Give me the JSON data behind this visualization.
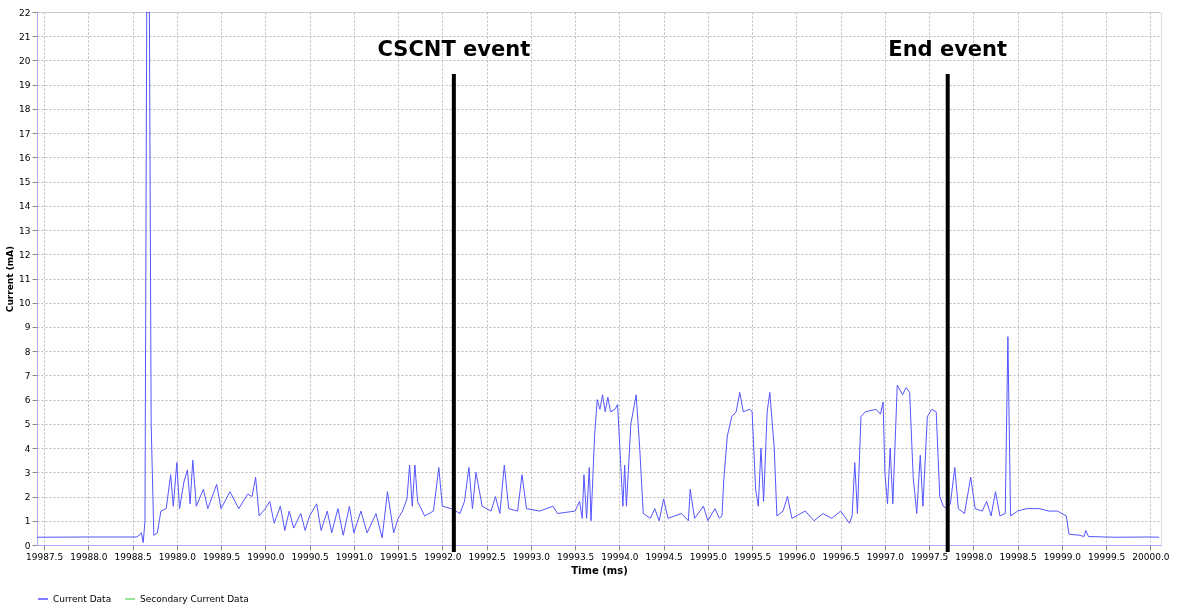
{
  "chart_data": {
    "type": "line",
    "xlabel": "Time (ms)",
    "ylabel": "Current (mA)",
    "xlim": [
      19987.42,
      20000.12
    ],
    "ylim": [
      0,
      22
    ],
    "xticks": [
      19987.5,
      {
        "value": 19988,
        "label": "19988.0"
      },
      19988.5,
      {
        "value": 19989,
        "label": "19989.0"
      },
      19989.5,
      {
        "value": 19990,
        "label": "19990.0"
      },
      19990.5,
      {
        "value": 19991,
        "label": "19991.0"
      },
      19991.5,
      {
        "value": 19992,
        "label": "19992.0"
      },
      19992.5,
      {
        "value": 19993,
        "label": "19993.0"
      },
      19993.5,
      {
        "value": 19994,
        "label": "19994.0"
      },
      19994.5,
      {
        "value": 19995,
        "label": "19995.0"
      },
      19995.5,
      {
        "value": 19996,
        "label": "19996.0"
      },
      19996.5,
      {
        "value": 19997,
        "label": "19997.0"
      },
      19997.5,
      {
        "value": 19998,
        "label": "19998.0"
      },
      19998.5,
      {
        "value": 19999,
        "label": "19999.0"
      },
      19999.5,
      {
        "value": 20000,
        "label": "20000.0"
      }
    ],
    "yticks": [
      0,
      1,
      2,
      3,
      4,
      5,
      6,
      7,
      8,
      9,
      10,
      11,
      12,
      13,
      14,
      15,
      16,
      17,
      18,
      19,
      20,
      21,
      22
    ],
    "grid": true,
    "legend": "bottom",
    "ref_lines": [
      {
        "axis": "x",
        "value": 19992.13,
        "label": "CSCNT event",
        "color": "#000000"
      },
      {
        "axis": "x",
        "value": 19997.71,
        "label": "End event",
        "color": "#000000"
      }
    ],
    "series": [
      {
        "name": "Current Data",
        "color": "#5555ff",
        "x": [
          19987.42,
          19988.0,
          19988.55,
          19988.6,
          19988.62,
          19988.64,
          19988.66,
          19988.69,
          19988.71,
          19988.74,
          19988.78,
          19988.82,
          19988.88,
          19988.93,
          19988.96,
          19989.0,
          19989.03,
          19989.08,
          19989.12,
          19989.15,
          19989.18,
          19989.22,
          19989.3,
          19989.35,
          19989.45,
          19989.5,
          19989.6,
          19989.7,
          19989.8,
          19989.85,
          19989.89,
          19989.93,
          19990.0,
          19990.05,
          19990.1,
          19990.17,
          19990.22,
          19990.27,
          19990.32,
          19990.4,
          19990.45,
          19990.5,
          19990.58,
          19990.63,
          19990.7,
          19990.75,
          19990.82,
          19990.88,
          19990.95,
          19991.0,
          19991.08,
          19991.15,
          19991.25,
          19991.32,
          19991.38,
          19991.45,
          19991.5,
          19991.55,
          19991.6,
          19991.63,
          19991.66,
          19991.69,
          19991.72,
          19991.8,
          19991.9,
          19991.96,
          19992.0,
          19992.1,
          19992.2,
          19992.25,
          19992.3,
          19992.34,
          19992.38,
          19992.45,
          19992.55,
          19992.6,
          19992.65,
          19992.7,
          19992.75,
          19992.85,
          19992.9,
          19992.95,
          19993.1,
          19993.25,
          19993.3,
          19993.5,
          19993.55,
          19993.58,
          19993.6,
          19993.63,
          19993.66,
          19993.68,
          19993.72,
          19993.75,
          19993.78,
          19993.81,
          19993.84,
          19993.87,
          19993.9,
          19993.95,
          19993.98,
          19994.02,
          19994.04,
          19994.06,
          19994.08,
          19994.13,
          19994.19,
          19994.23,
          19994.27,
          19994.35,
          19994.4,
          19994.45,
          19994.5,
          19994.55,
          19994.7,
          19994.78,
          19994.8,
          19994.85,
          19994.95,
          19995.0,
          19995.08,
          19995.13,
          19995.16,
          19995.18,
          19995.22,
          19995.27,
          19995.32,
          19995.36,
          19995.4,
          19995.47,
          19995.5,
          19995.54,
          19995.57,
          19995.6,
          19995.63,
          19995.67,
          19995.7,
          19995.75,
          19995.78,
          19995.85,
          19995.9,
          19995.95,
          19996.1,
          19996.2,
          19996.3,
          19996.4,
          19996.5,
          19996.6,
          19996.63,
          19996.66,
          19996.69,
          19996.73,
          19996.78,
          19996.9,
          19996.95,
          19996.98,
          19997.0,
          19997.03,
          19997.06,
          19997.09,
          19997.14,
          19997.2,
          19997.24,
          19997.28,
          19997.32,
          19997.36,
          19997.4,
          19997.43,
          19997.48,
          19997.53,
          19997.58,
          19997.62,
          19997.66,
          19997.7,
          19997.74,
          19997.79,
          19997.83,
          19997.9,
          19997.97,
          19998.02,
          19998.1,
          19998.15,
          19998.2,
          19998.25,
          19998.3,
          19998.36,
          19998.39,
          19998.42,
          19998.5,
          19998.6,
          19998.75,
          19998.85,
          19998.95,
          19999.0,
          19999.05,
          19999.08,
          19999.2,
          19999.25,
          19999.27,
          19999.3,
          19999.6,
          20000.0,
          20000.1
        ],
        "values": [
          0.32,
          0.33,
          0.33,
          0.5,
          0.1,
          1.0,
          22,
          22,
          5,
          0.4,
          0.5,
          1.4,
          1.5,
          2.9,
          1.6,
          3.4,
          1.5,
          2.6,
          3.1,
          1.7,
          3.5,
          1.6,
          2.3,
          1.5,
          2.5,
          1.5,
          2.2,
          1.5,
          2.1,
          2.0,
          2.8,
          1.2,
          1.5,
          1.8,
          0.9,
          1.6,
          0.6,
          1.4,
          0.7,
          1.3,
          0.6,
          1.2,
          1.7,
          0.6,
          1.4,
          0.5,
          1.5,
          0.4,
          1.6,
          0.5,
          1.4,
          0.5,
          1.3,
          0.3,
          2.2,
          0.5,
          1.1,
          1.4,
          1.9,
          3.3,
          1.6,
          3.3,
          1.8,
          1.2,
          1.4,
          3.2,
          1.6,
          1.5,
          1.3,
          1.8,
          3.2,
          1.5,
          3.0,
          1.6,
          1.4,
          2.0,
          1.3,
          3.3,
          1.5,
          1.4,
          2.9,
          1.5,
          1.4,
          1.6,
          1.3,
          1.4,
          1.8,
          1.1,
          2.9,
          1.1,
          3.2,
          1.0,
          4.5,
          6.0,
          5.6,
          6.2,
          5.5,
          6.1,
          5.5,
          5.6,
          5.8,
          3.0,
          1.6,
          3.3,
          1.6,
          5.0,
          6.2,
          4.0,
          1.3,
          1.1,
          1.5,
          1.0,
          1.9,
          1.1,
          1.3,
          1.0,
          2.3,
          1.1,
          1.6,
          1.0,
          1.5,
          1.1,
          1.2,
          2.7,
          4.5,
          5.3,
          5.5,
          6.3,
          5.5,
          5.6,
          5.5,
          2.3,
          1.6,
          4.0,
          1.8,
          5.5,
          6.3,
          4.0,
          1.2,
          1.4,
          2.0,
          1.1,
          1.4,
          1.0,
          1.3,
          1.1,
          1.4,
          0.9,
          1.2,
          3.4,
          1.3,
          5.3,
          5.5,
          5.6,
          5.4,
          5.9,
          3.0,
          1.7,
          4.0,
          1.7,
          6.6,
          6.2,
          6.5,
          6.3,
          2.8,
          1.3,
          3.7,
          1.6,
          5.3,
          5.6,
          5.5,
          2.0,
          1.6,
          1.5,
          1.7,
          3.2,
          1.5,
          1.3,
          2.8,
          1.5,
          1.4,
          1.8,
          1.2,
          2.2,
          1.2,
          1.3,
          8.6,
          1.2,
          1.4,
          1.5,
          1.5,
          1.4,
          1.4,
          1.3,
          1.2,
          0.45,
          0.4,
          0.35,
          0.6,
          0.35,
          0.32,
          0.33,
          0.32
        ]
      },
      {
        "name": "Secondary Current Data",
        "color": "#77dd77"
      }
    ]
  }
}
